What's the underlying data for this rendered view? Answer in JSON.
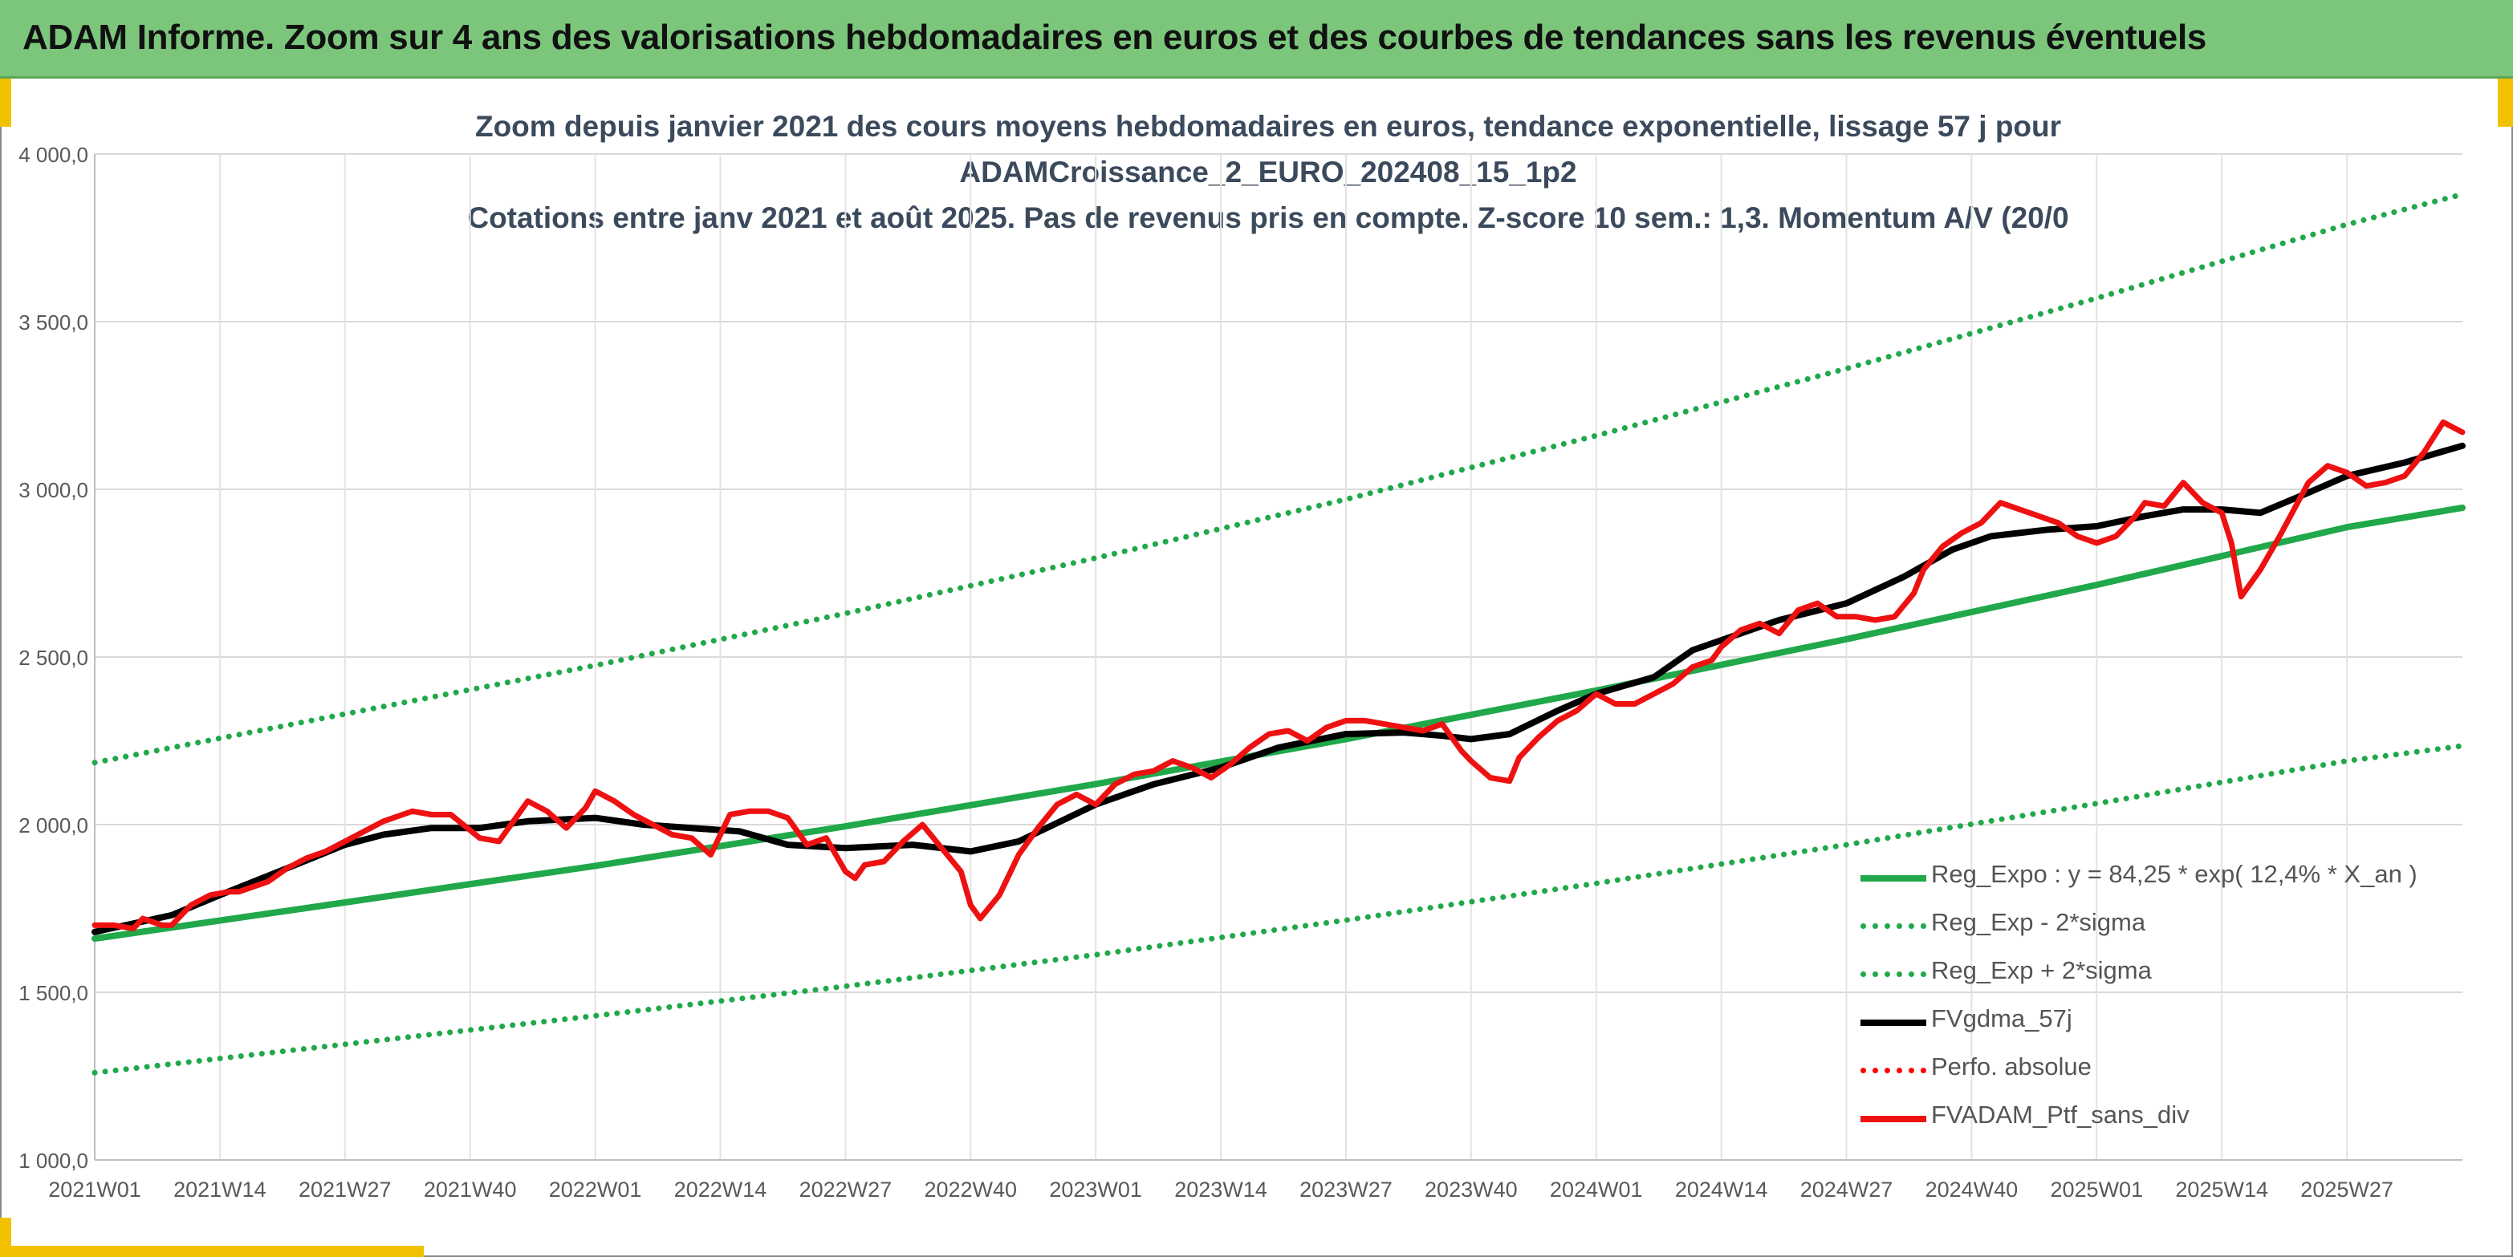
{
  "banner": {
    "title": "ADAM Informe. Zoom sur 4 ans des valorisations hebdomadaires en euros et des courbes de tendances sans les revenus éventuels"
  },
  "chart_data": {
    "type": "line",
    "title_lines": [
      "Zoom depuis janvier 2021 des cours moyens hebdomadaires en euros, tendance exponentielle, lissage 57 j pour",
      "ADAMCroissance_2_EURO_202408_15_1p2",
      "Cotations entre janv 2021 et août 2025. Pas de revenus pris en compte. Z-score 10 sem.: 1,3. Momentum A/V (20/0"
    ],
    "xlabel": "",
    "ylabel": "",
    "ylim": [
      1000,
      4000
    ],
    "yticks": [
      "1 000,0",
      "1 500,0",
      "2 000,0",
      "2 500,0",
      "3 000,0",
      "3 500,0",
      "4 000,0"
    ],
    "ytick_values": [
      1000,
      1500,
      2000,
      2500,
      3000,
      3500,
      4000
    ],
    "xticks": [
      "2021W01",
      "2021W14",
      "2021W27",
      "2021W40",
      "2022W01",
      "2022W14",
      "2022W27",
      "2022W40",
      "2023W01",
      "2023W14",
      "2023W27",
      "2023W40",
      "2024W01",
      "2024W14",
      "2024W27",
      "2024W40",
      "2025W01",
      "2025W14",
      "2025W27"
    ],
    "xtick_index": [
      0,
      13,
      26,
      39,
      52,
      65,
      78,
      91,
      104,
      117,
      130,
      143,
      156,
      169,
      182,
      195,
      208,
      221,
      234
    ],
    "x_end_index": 246,
    "grid": true,
    "legend_position": "bottom-right",
    "series": [
      {
        "name": "Reg_Expo : y = 84,25 * exp( 12,4% *  X_an )",
        "color": "#20a84a",
        "style": "solid",
        "x": [
          0,
          26,
          52,
          78,
          104,
          130,
          156,
          182,
          208,
          234,
          246
        ],
        "values": [
          1660,
          1768,
          1877,
          1995,
          2121,
          2255,
          2400,
          2553,
          2715,
          2887,
          2945
        ]
      },
      {
        "name": "Reg_Exp - 2*sigma",
        "color": "#20a84a",
        "style": "dotted",
        "x": [
          0,
          26,
          52,
          78,
          104,
          130,
          156,
          182,
          208,
          234,
          246
        ],
        "values": [
          1260,
          1345,
          1430,
          1518,
          1612,
          1715,
          1825,
          1940,
          2063,
          2190,
          2235
        ]
      },
      {
        "name": "Reg_Exp + 2*sigma",
        "color": "#20a84a",
        "style": "dotted",
        "x": [
          0,
          26,
          52,
          78,
          104,
          130,
          156,
          182,
          208,
          234,
          246
        ],
        "values": [
          2185,
          2330,
          2475,
          2630,
          2795,
          2970,
          3160,
          3360,
          3570,
          3790,
          3880
        ]
      },
      {
        "name": "FVgdma_57j",
        "color": "#000000",
        "style": "solid",
        "x": [
          0,
          8,
          13,
          20,
          26,
          30,
          35,
          40,
          45,
          52,
          57,
          62,
          67,
          72,
          78,
          85,
          91,
          96,
          104,
          110,
          117,
          123,
          130,
          136,
          140,
          143,
          147,
          152,
          156,
          162,
          166,
          170,
          175,
          182,
          188,
          193,
          197,
          203,
          208,
          213,
          217,
          221,
          225,
          230,
          234,
          240,
          246
        ],
        "values": [
          1680,
          1730,
          1790,
          1870,
          1940,
          1970,
          1990,
          1990,
          2010,
          2020,
          2000,
          1990,
          1980,
          1940,
          1930,
          1940,
          1920,
          1950,
          2060,
          2120,
          2170,
          2230,
          2270,
          2275,
          2265,
          2255,
          2270,
          2340,
          2390,
          2440,
          2520,
          2560,
          2610,
          2660,
          2740,
          2820,
          2860,
          2880,
          2890,
          2920,
          2940,
          2940,
          2930,
          2990,
          3040,
          3080,
          3130
        ]
      },
      {
        "name": "Perfo. absolue",
        "color": "#ff0000",
        "style": "dotted",
        "x": [],
        "values": []
      },
      {
        "name": "FVADAM_Ptf_sans_div",
        "color": "#ee1111",
        "style": "solid",
        "x": [
          0,
          2,
          4,
          5,
          7,
          8,
          10,
          12,
          14,
          15,
          18,
          20,
          22,
          24,
          26,
          28,
          30,
          33,
          35,
          37,
          40,
          42,
          45,
          47,
          49,
          51,
          52,
          54,
          56,
          58,
          60,
          62,
          64,
          66,
          68,
          70,
          72,
          74,
          76,
          78,
          79,
          80,
          82,
          84,
          86,
          88,
          90,
          91,
          92,
          94,
          96,
          98,
          100,
          102,
          104,
          106,
          108,
          110,
          112,
          114,
          116,
          118,
          120,
          122,
          124,
          126,
          128,
          130,
          132,
          134,
          136,
          138,
          140,
          142,
          143,
          145,
          147,
          148,
          150,
          152,
          154,
          156,
          158,
          160,
          162,
          164,
          166,
          168,
          169,
          171,
          173,
          175,
          177,
          179,
          181,
          183,
          185,
          187,
          189,
          190,
          192,
          194,
          196,
          198,
          200,
          202,
          204,
          206,
          208,
          210,
          212,
          213,
          215,
          217,
          219,
          221,
          222,
          223,
          225,
          227,
          230,
          232,
          234,
          236,
          238,
          240,
          242,
          244,
          246
        ],
        "values": [
          1700,
          1700,
          1690,
          1720,
          1700,
          1700,
          1760,
          1790,
          1800,
          1800,
          1830,
          1870,
          1900,
          1920,
          1950,
          1980,
          2010,
          2040,
          2030,
          2030,
          1960,
          1950,
          2070,
          2040,
          1990,
          2050,
          2100,
          2070,
          2030,
          2000,
          1970,
          1960,
          1910,
          2030,
          2040,
          2040,
          2020,
          1940,
          1960,
          1860,
          1840,
          1880,
          1890,
          1950,
          2000,
          1930,
          1860,
          1760,
          1720,
          1790,
          1910,
          1990,
          2060,
          2090,
          2060,
          2120,
          2150,
          2160,
          2190,
          2170,
          2140,
          2180,
          2230,
          2270,
          2280,
          2250,
          2290,
          2310,
          2310,
          2300,
          2290,
          2280,
          2300,
          2220,
          2190,
          2140,
          2130,
          2200,
          2260,
          2310,
          2340,
          2390,
          2360,
          2360,
          2390,
          2420,
          2470,
          2490,
          2530,
          2580,
          2600,
          2570,
          2640,
          2660,
          2620,
          2620,
          2610,
          2620,
          2690,
          2760,
          2830,
          2870,
          2900,
          2960,
          2940,
          2920,
          2900,
          2860,
          2840,
          2860,
          2920,
          2960,
          2950,
          3020,
          2960,
          2930,
          2840,
          2680,
          2760,
          2860,
          3020,
          3070,
          3050,
          3010,
          3020,
          3040,
          3110,
          3200,
          3170
        ]
      }
    ]
  }
}
